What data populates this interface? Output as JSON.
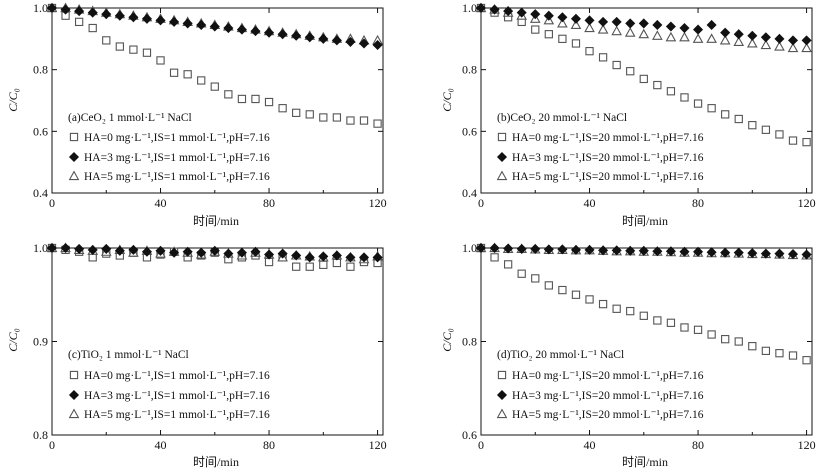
{
  "chart_data": [
    {
      "id": "a",
      "type": "scatter",
      "panel_label": "(a)CeO₂ 1 mmol·L⁻¹ NaCl",
      "xlabel": "时间/min",
      "ylabel": "C/C₀",
      "xlim": [
        0,
        122
      ],
      "ylim": [
        0.4,
        1.0
      ],
      "xticks": [
        0,
        40,
        80,
        120
      ],
      "yticks": [
        0.4,
        0.6,
        0.8,
        1.0
      ],
      "ytick_labels": [
        "0.4",
        "0.6",
        "0.8",
        "1.0"
      ],
      "grid": false,
      "legend_position": "bottom-left",
      "series": [
        {
          "name": "HA=0 mg·L⁻¹,IS=1 mmol·L⁻¹,pH=7.16",
          "marker": "open-square",
          "x": [
            0,
            5,
            10,
            15,
            20,
            25,
            30,
            35,
            40,
            45,
            50,
            55,
            60,
            65,
            70,
            75,
            80,
            85,
            90,
            95,
            100,
            105,
            110,
            115,
            120
          ],
          "y": [
            1.0,
            0.975,
            0.955,
            0.935,
            0.895,
            0.875,
            0.865,
            0.855,
            0.83,
            0.79,
            0.785,
            0.765,
            0.745,
            0.72,
            0.705,
            0.705,
            0.695,
            0.675,
            0.66,
            0.655,
            0.645,
            0.645,
            0.635,
            0.635,
            0.625
          ]
        },
        {
          "name": "HA=3 mg·L⁻¹,IS=1 mmol·L⁻¹,pH=7.16",
          "marker": "filled-diamond",
          "x": [
            0,
            5,
            10,
            15,
            20,
            25,
            30,
            35,
            40,
            45,
            50,
            55,
            60,
            65,
            70,
            75,
            80,
            85,
            90,
            95,
            100,
            105,
            110,
            115,
            120
          ],
          "y": [
            1.0,
            0.995,
            0.99,
            0.985,
            0.98,
            0.975,
            0.97,
            0.965,
            0.96,
            0.955,
            0.95,
            0.945,
            0.94,
            0.935,
            0.93,
            0.925,
            0.92,
            0.915,
            0.91,
            0.905,
            0.9,
            0.895,
            0.89,
            0.885,
            0.88
          ]
        },
        {
          "name": "HA=5 mg·L⁻¹,IS=1 mmol·L⁻¹,pH=7.16",
          "marker": "open-triangle",
          "x": [
            0,
            5,
            10,
            15,
            20,
            25,
            30,
            35,
            40,
            45,
            50,
            55,
            60,
            65,
            70,
            75,
            80,
            85,
            90,
            95,
            100,
            105,
            110,
            115,
            120
          ],
          "y": [
            1.0,
            1.0,
            0.995,
            0.99,
            0.985,
            0.98,
            0.975,
            0.97,
            0.965,
            0.96,
            0.955,
            0.95,
            0.945,
            0.94,
            0.935,
            0.93,
            0.925,
            0.92,
            0.915,
            0.91,
            0.905,
            0.9,
            0.9,
            0.895,
            0.895
          ]
        }
      ]
    },
    {
      "id": "b",
      "type": "scatter",
      "panel_label": "(b)CeO₂ 20 mmol·L⁻¹ NaCl",
      "xlabel": "时间/min",
      "ylabel": "C/C₀",
      "xlim": [
        0,
        122
      ],
      "ylim": [
        0.4,
        1.0
      ],
      "xticks": [
        0,
        40,
        80,
        120
      ],
      "yticks": [
        0.4,
        0.6,
        0.8,
        1.0
      ],
      "ytick_labels": [
        "0.4",
        "0.6",
        "0.8",
        "1.0"
      ],
      "grid": false,
      "legend_position": "bottom-left",
      "series": [
        {
          "name": "HA=0 mg·L⁻¹,IS=20 mmol·L⁻¹,pH=7.16",
          "marker": "open-square",
          "x": [
            0,
            5,
            10,
            15,
            20,
            25,
            30,
            35,
            40,
            45,
            50,
            55,
            60,
            65,
            70,
            75,
            80,
            85,
            90,
            95,
            100,
            105,
            110,
            115,
            120
          ],
          "y": [
            1.0,
            0.985,
            0.97,
            0.955,
            0.93,
            0.915,
            0.9,
            0.885,
            0.86,
            0.84,
            0.815,
            0.795,
            0.77,
            0.75,
            0.73,
            0.71,
            0.69,
            0.675,
            0.655,
            0.64,
            0.62,
            0.605,
            0.59,
            0.57,
            0.565
          ]
        },
        {
          "name": "HA=3 mg·L⁻¹,IS=20 mmol·L⁻¹,pH=7.16",
          "marker": "filled-diamond",
          "x": [
            0,
            5,
            10,
            15,
            20,
            25,
            30,
            35,
            40,
            45,
            50,
            55,
            60,
            65,
            70,
            75,
            80,
            85,
            90,
            95,
            100,
            105,
            110,
            115,
            120
          ],
          "y": [
            1.0,
            0.995,
            0.99,
            0.985,
            0.98,
            0.975,
            0.97,
            0.965,
            0.96,
            0.955,
            0.955,
            0.95,
            0.95,
            0.945,
            0.94,
            0.935,
            0.93,
            0.945,
            0.92,
            0.915,
            0.91,
            0.905,
            0.9,
            0.895,
            0.895
          ]
        },
        {
          "name": "HA=5 mg·L⁻¹,IS=20 mmol·L⁻¹,pH=7.16",
          "marker": "open-triangle",
          "x": [
            0,
            5,
            10,
            15,
            20,
            25,
            30,
            35,
            40,
            45,
            50,
            55,
            60,
            65,
            70,
            75,
            80,
            85,
            90,
            95,
            100,
            105,
            110,
            115,
            120
          ],
          "y": [
            1.0,
            0.995,
            0.985,
            0.975,
            0.965,
            0.96,
            0.95,
            0.945,
            0.935,
            0.93,
            0.925,
            0.92,
            0.915,
            0.91,
            0.905,
            0.905,
            0.9,
            0.9,
            0.895,
            0.89,
            0.885,
            0.88,
            0.875,
            0.87,
            0.87
          ]
        }
      ]
    },
    {
      "id": "c",
      "type": "scatter",
      "panel_label": "(c)TiO₂ 1 mmol·L⁻¹ NaCl",
      "xlabel": "时间/min",
      "ylabel": "C/C₀",
      "xlim": [
        0,
        122
      ],
      "ylim": [
        0.8,
        1.0
      ],
      "xticks": [
        0,
        40,
        80,
        120
      ],
      "yticks": [
        0.8,
        0.9,
        1.0
      ],
      "ytick_labels": [
        "0.8",
        "0.9",
        "1.0"
      ],
      "grid": false,
      "legend_position": "bottom-left",
      "series": [
        {
          "name": "HA=0 mg·L⁻¹,IS=1 mmol·L⁻¹,pH=7.16",
          "marker": "open-square",
          "x": [
            0,
            5,
            10,
            15,
            20,
            25,
            30,
            35,
            40,
            45,
            50,
            55,
            60,
            65,
            70,
            75,
            80,
            85,
            90,
            95,
            100,
            105,
            110,
            115,
            120
          ],
          "y": [
            1.0,
            0.998,
            0.996,
            0.99,
            0.994,
            0.992,
            0.995,
            0.99,
            0.993,
            0.996,
            0.99,
            0.992,
            0.995,
            0.988,
            0.99,
            0.992,
            0.985,
            0.99,
            0.98,
            0.98,
            0.982,
            0.984,
            0.98,
            0.985,
            0.984
          ]
        },
        {
          "name": "HA=3 mg·L⁻¹,IS=1 mmol·L⁻¹,pH=7.16",
          "marker": "filled-diamond",
          "x": [
            0,
            5,
            10,
            15,
            20,
            25,
            30,
            35,
            40,
            45,
            50,
            55,
            60,
            65,
            70,
            75,
            80,
            85,
            90,
            95,
            100,
            105,
            110,
            115,
            120
          ],
          "y": [
            1.0,
            1.0,
            0.999,
            0.998,
            0.999,
            0.997,
            0.998,
            0.996,
            0.997,
            0.995,
            0.996,
            0.995,
            0.997,
            0.994,
            0.995,
            0.996,
            0.993,
            0.994,
            0.992,
            0.99,
            0.991,
            0.992,
            0.99,
            0.99,
            0.99
          ]
        },
        {
          "name": "HA=5 mg·L⁻¹,IS=1 mmol·L⁻¹,pH=7.16",
          "marker": "open-triangle",
          "x": [
            0,
            5,
            10,
            15,
            20,
            25,
            30,
            35,
            40,
            45,
            50,
            55,
            60,
            65,
            70,
            75,
            80,
            85,
            90,
            95,
            100,
            105,
            110,
            115,
            120
          ],
          "y": [
            1.0,
            1.0,
            0.998,
            0.997,
            0.996,
            0.998,
            0.995,
            0.997,
            0.994,
            0.996,
            0.995,
            0.993,
            0.996,
            0.994,
            0.992,
            0.995,
            0.993,
            0.99,
            0.992,
            0.991,
            0.99,
            0.992,
            0.99,
            0.988,
            0.991
          ]
        }
      ]
    },
    {
      "id": "d",
      "type": "scatter",
      "panel_label": "(d)TiO₂ 20 mmol·L⁻¹ NaCl",
      "xlabel": "时间/min",
      "ylabel": "C/C₀",
      "xlim": [
        0,
        122
      ],
      "ylim": [
        0.6,
        1.0
      ],
      "xticks": [
        0,
        40,
        80,
        120
      ],
      "yticks": [
        0.6,
        0.8,
        1.0
      ],
      "ytick_labels": [
        "0.6",
        "0.8",
        "1.0"
      ],
      "grid": false,
      "legend_position": "bottom-left",
      "series": [
        {
          "name": "HA=0 mg·L⁻¹,IS=20 mmol·L⁻¹,pH=7.16",
          "marker": "open-square",
          "x": [
            0,
            5,
            10,
            15,
            20,
            25,
            30,
            35,
            40,
            45,
            50,
            55,
            60,
            65,
            70,
            75,
            80,
            85,
            90,
            95,
            100,
            105,
            110,
            115,
            120
          ],
          "y": [
            1.0,
            0.98,
            0.965,
            0.945,
            0.935,
            0.92,
            0.91,
            0.9,
            0.89,
            0.88,
            0.87,
            0.865,
            0.855,
            0.845,
            0.84,
            0.83,
            0.825,
            0.815,
            0.805,
            0.8,
            0.79,
            0.78,
            0.775,
            0.77,
            0.76
          ]
        },
        {
          "name": "HA=3 mg·L⁻¹,IS=20 mmol·L⁻¹,pH=7.16",
          "marker": "filled-diamond",
          "x": [
            0,
            5,
            10,
            15,
            20,
            25,
            30,
            35,
            40,
            45,
            50,
            55,
            60,
            65,
            70,
            75,
            80,
            85,
            90,
            95,
            100,
            105,
            110,
            115,
            120
          ],
          "y": [
            1.0,
            1.0,
            0.999,
            0.998,
            0.998,
            0.997,
            0.997,
            0.996,
            0.996,
            0.995,
            0.995,
            0.994,
            0.994,
            0.993,
            0.993,
            0.992,
            0.992,
            0.991,
            0.99,
            0.99,
            0.989,
            0.988,
            0.988,
            0.987,
            0.986
          ]
        },
        {
          "name": "HA=5 mg·L⁻¹,IS=20 mmol·L⁻¹,pH=7.16",
          "marker": "open-triangle",
          "x": [
            0,
            5,
            10,
            15,
            20,
            25,
            30,
            35,
            40,
            45,
            50,
            55,
            60,
            65,
            70,
            75,
            80,
            85,
            90,
            95,
            100,
            105,
            110,
            115,
            120
          ],
          "y": [
            1.0,
            1.0,
            0.998,
            0.998,
            0.997,
            0.996,
            0.996,
            0.995,
            0.995,
            0.994,
            0.993,
            0.993,
            0.992,
            0.992,
            0.991,
            0.99,
            0.99,
            0.989,
            0.989,
            0.988,
            0.987,
            0.987,
            0.986,
            0.985,
            0.984
          ]
        }
      ]
    }
  ]
}
